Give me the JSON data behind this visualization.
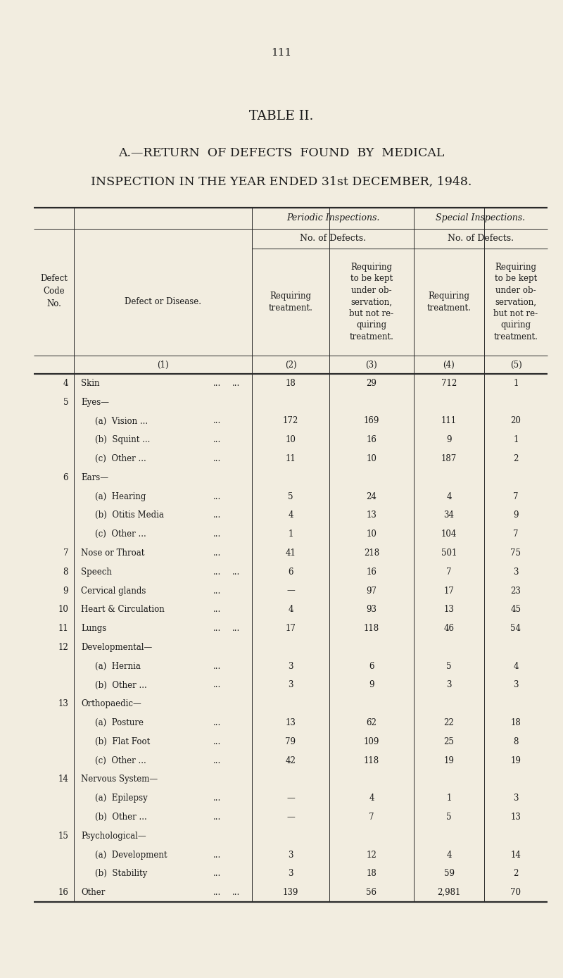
{
  "page_number": "111",
  "title1": "TABLE II.",
  "title2": "A.—RETURN  OF DEFECTS  FOUND  BY  MEDICAL",
  "title3": "INSPECTION IN THE YEAR ENDED 31st DECEMBER, 1948.",
  "bg_color": "#f2ede0",
  "text_color": "#1a1a1a",
  "rows": [
    [
      "4",
      "Skin",
      "...",
      "...",
      "18",
      "29",
      "712",
      "1"
    ],
    [
      "5",
      "Eyes—",
      "",
      "",
      "",
      "",
      "",
      ""
    ],
    [
      "",
      "(a)  Vision ...",
      "...",
      "",
      "172",
      "169",
      "111",
      "20"
    ],
    [
      "",
      "(b)  Squint ...",
      "...",
      "",
      "10",
      "16",
      "9",
      "1"
    ],
    [
      "",
      "(c)  Other ...",
      "...",
      "",
      "11",
      "10",
      "187",
      "2"
    ],
    [
      "6",
      "Ears—",
      "",
      "",
      "",
      "",
      "",
      ""
    ],
    [
      "",
      "(a)  Hearing",
      "...",
      "",
      "5",
      "24",
      "4",
      "7"
    ],
    [
      "",
      "(b)  Otitis Media",
      "...",
      "",
      "4",
      "13",
      "34",
      "9"
    ],
    [
      "",
      "(c)  Other ...",
      "...",
      "",
      "1",
      "10",
      "104",
      "7"
    ],
    [
      "7",
      "Nose or Throat",
      "...",
      "",
      "41",
      "218",
      "501",
      "75"
    ],
    [
      "8",
      "Speech",
      "...",
      "...",
      "6",
      "16",
      "7",
      "3"
    ],
    [
      "9",
      "Cervical glands",
      "...",
      "",
      "—",
      "97",
      "17",
      "23"
    ],
    [
      "10",
      "Heart & Circulation",
      "...",
      "",
      "4",
      "93",
      "13",
      "45"
    ],
    [
      "11",
      "Lungs",
      "...",
      "...",
      "17",
      "118",
      "46",
      "54"
    ],
    [
      "12",
      "Developmental—",
      "",
      "",
      "",
      "",
      "",
      ""
    ],
    [
      "",
      "(a)  Hernia",
      "...",
      "",
      "3",
      "6",
      "5",
      "4"
    ],
    [
      "",
      "(b)  Other ...",
      "...",
      "",
      "3",
      "9",
      "3",
      "3"
    ],
    [
      "13",
      "Orthopaedic—",
      "",
      "",
      "",
      "",
      "",
      ""
    ],
    [
      "",
      "(a)  Posture",
      "...",
      "",
      "13",
      "62",
      "22",
      "18"
    ],
    [
      "",
      "(b)  Flat Foot",
      "...",
      "",
      "79",
      "109",
      "25",
      "8"
    ],
    [
      "",
      "(c)  Other ...",
      "...",
      "",
      "42",
      "118",
      "19",
      "19"
    ],
    [
      "14",
      "Nervous System—",
      "",
      "",
      "",
      "",
      "",
      ""
    ],
    [
      "",
      "(a)  Epilepsy",
      "...",
      "",
      "—",
      "4",
      "1",
      "3"
    ],
    [
      "",
      "(b)  Other ...",
      "...",
      "",
      "—",
      "7",
      "5",
      "13"
    ],
    [
      "15",
      "Psychological—",
      "",
      "",
      "",
      "",
      "",
      ""
    ],
    [
      "",
      "(a)  Development",
      "...",
      "",
      "3",
      "12",
      "4",
      "14"
    ],
    [
      "",
      "(b)  Stability",
      "...",
      "",
      "3",
      "18",
      "59",
      "2"
    ],
    [
      "16",
      "Other",
      "...",
      "...",
      "139",
      "56",
      "2,981",
      "70"
    ]
  ]
}
